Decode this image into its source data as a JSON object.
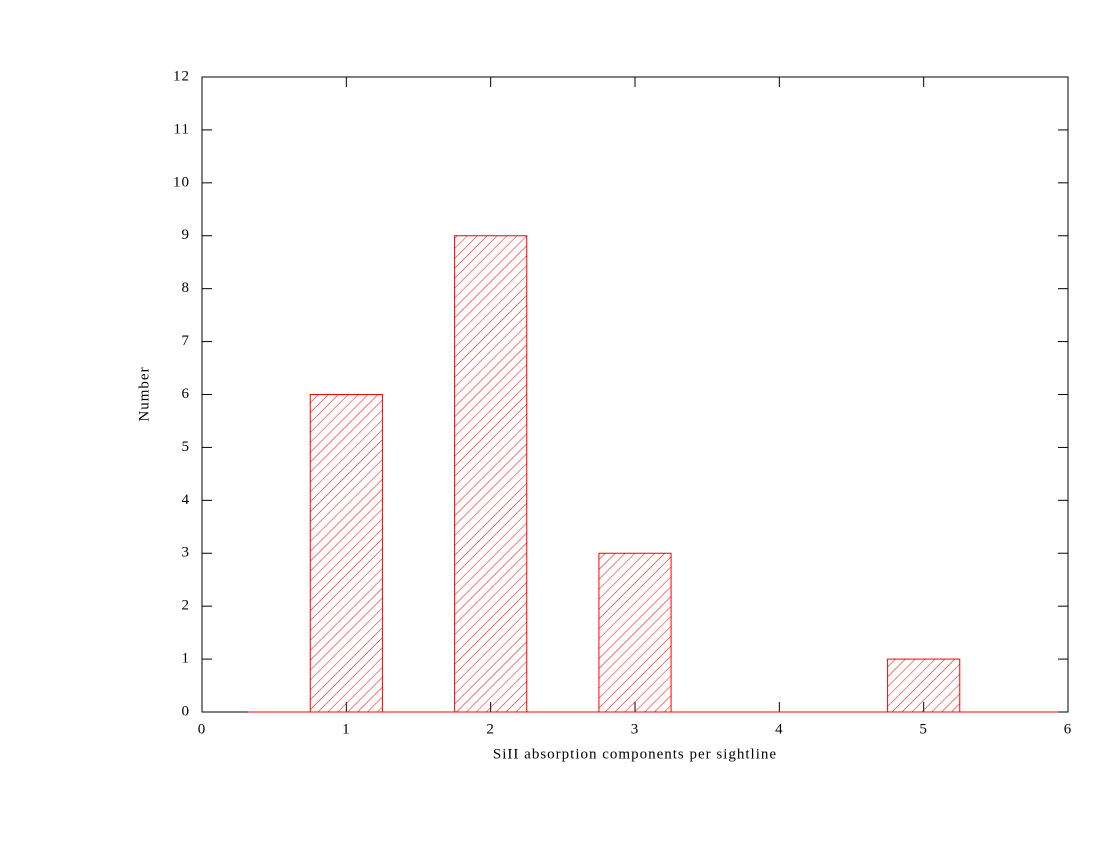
{
  "chart_data": {
    "type": "bar",
    "xlabel": "SiII absorption components per sightline",
    "ylabel": "Number",
    "x": [
      1,
      2,
      3,
      4,
      5
    ],
    "values": [
      6,
      9,
      3,
      0,
      1
    ],
    "color": "#ff0000",
    "hatch": true,
    "xlim": [
      0,
      6
    ],
    "xticks": [
      0,
      1,
      2,
      3,
      4,
      5,
      6
    ],
    "ylim": [
      0,
      12
    ],
    "yticks": [
      0,
      1,
      2,
      3,
      4,
      5,
      6,
      7,
      8,
      9,
      10,
      11,
      12
    ]
  }
}
